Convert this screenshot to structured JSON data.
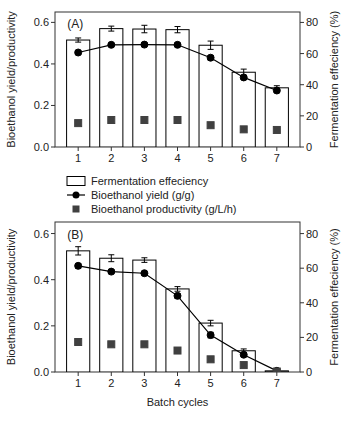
{
  "chart_data": [
    {
      "type": "bar",
      "title": "(A)",
      "x": [
        1,
        2,
        3,
        4,
        5,
        6,
        7
      ],
      "xlim": [
        0.3,
        7.7
      ],
      "xticks": [
        1,
        2,
        3,
        4,
        5,
        6,
        7
      ],
      "ylabel": "Bioethanol yield/productivity",
      "y2label": "Fermentation effeciency (%)",
      "ylim": [
        0.0,
        0.65
      ],
      "yticks": [
        {
          "value": 0.0,
          "label": "0.0"
        },
        0.2,
        0.4,
        0.6
      ],
      "y2lim": [
        0,
        86.7
      ],
      "y2ticks": [
        0,
        20,
        40,
        60,
        80
      ],
      "grid": false,
      "series": [
        {
          "type": "bar",
          "color": "#ffffff",
          "values": [
            0.515,
            0.57,
            0.568,
            0.565,
            0.49,
            0.36,
            0.285
          ],
          "errors": [
            0.01,
            0.012,
            0.018,
            0.015,
            0.02,
            0.015,
            0.01
          ]
        },
        {
          "type": "line",
          "marker": "circle",
          "line_style": "solid",
          "color": "#000000",
          "values": [
            0.455,
            0.492,
            0.493,
            0.492,
            0.43,
            0.335,
            0.272
          ],
          "errors": [
            0.01,
            0.008,
            0.008,
            0.008,
            0.01,
            0.008,
            0.01
          ]
        },
        {
          "type": "scatter",
          "marker": "square",
          "color": "#404040",
          "values": [
            0.115,
            0.13,
            0.13,
            0.13,
            0.105,
            0.085,
            0.082
          ]
        }
      ]
    },
    {
      "type": "bar",
      "title": "(B)",
      "x": [
        1,
        2,
        3,
        4,
        5,
        6,
        7
      ],
      "xlim": [
        0.3,
        7.7
      ],
      "xticks": [
        1,
        2,
        3,
        4,
        5,
        6,
        7
      ],
      "xlabel": "Batch cycles",
      "ylabel": "Bioethanol yield/productivity",
      "y2label": "Fermentation effeciency (%)",
      "ylim": [
        0.0,
        0.65
      ],
      "yticks": [
        {
          "value": 0.0,
          "label": "0.0"
        },
        0.2,
        0.4,
        0.6
      ],
      "y2lim": [
        0,
        86.7
      ],
      "y2ticks": [
        0,
        20,
        40,
        60,
        80
      ],
      "grid": false,
      "legend": "top",
      "series": [
        {
          "name": "Fermentation effeciency",
          "type": "bar",
          "color": "#ffffff",
          "values": [
            0.525,
            0.493,
            0.485,
            0.36,
            0.212,
            0.092,
            0.005
          ],
          "errors": [
            0.018,
            0.015,
            0.01,
            0.01,
            0.012,
            0.008,
            0.005
          ]
        },
        {
          "name": "Bioethanol yield (g/g)",
          "type": "line",
          "marker": "circle",
          "line_style": "solid",
          "color": "#000000",
          "values": [
            0.46,
            0.435,
            0.428,
            0.33,
            0.16,
            0.075,
            0.005
          ],
          "errors": [
            0.01,
            0.008,
            0.008,
            0.01,
            0.012,
            0.008,
            0.005
          ]
        },
        {
          "name": "Bioethanol productivity (g/L/h)",
          "type": "scatter",
          "marker": "square",
          "color": "#404040",
          "values": [
            0.13,
            0.12,
            0.12,
            0.093,
            0.055,
            0.03,
            0.002
          ]
        }
      ]
    }
  ]
}
